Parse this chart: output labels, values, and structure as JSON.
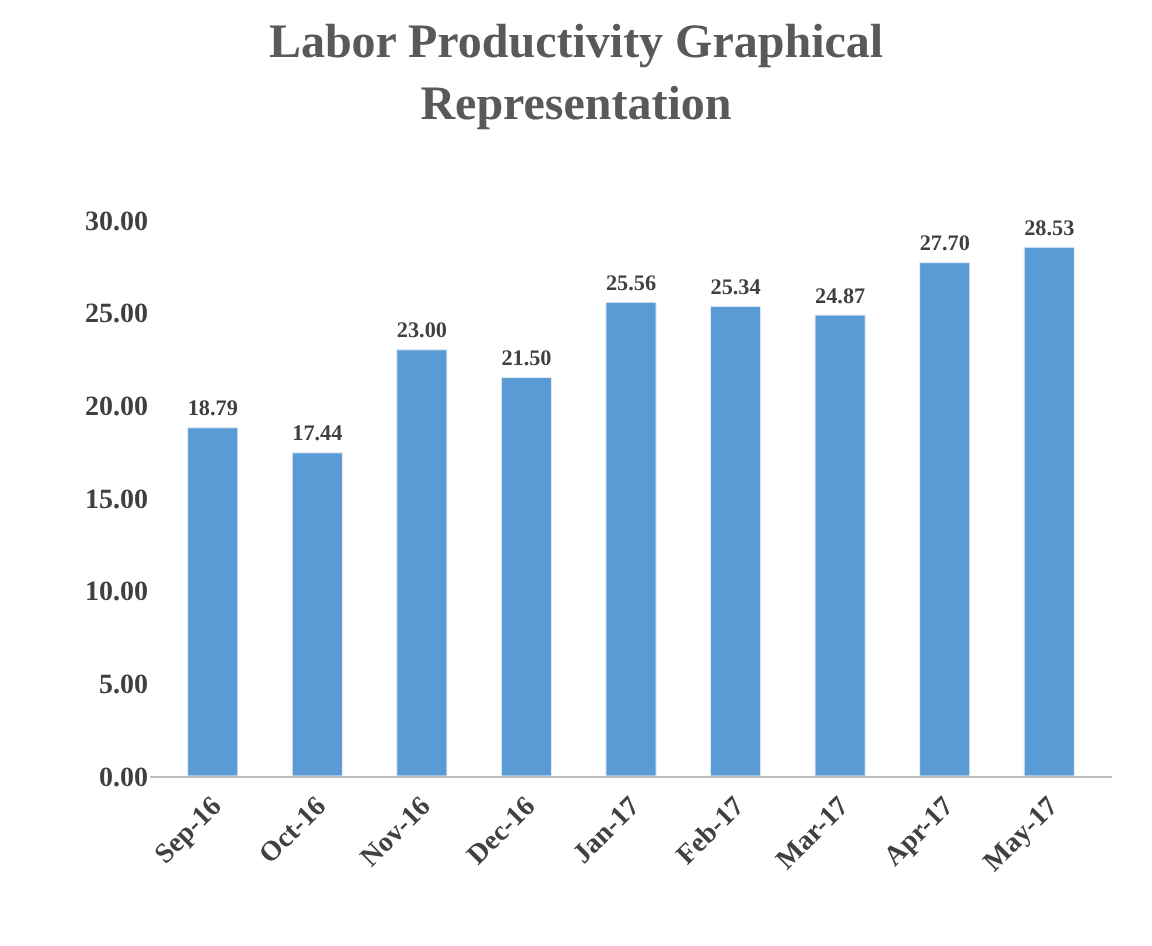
{
  "chart_data": {
    "type": "bar",
    "title": "Labor Productivity Graphical Representation",
    "categories": [
      "Sep-16",
      "Oct-16",
      "Nov-16",
      "Dec-16",
      "Jan-17",
      "Feb-17",
      "Mar-17",
      "Apr-17",
      "May-17"
    ],
    "values": [
      18.79,
      17.44,
      23.0,
      21.5,
      25.56,
      25.34,
      24.87,
      27.7,
      28.53
    ],
    "value_labels": [
      "18.79",
      "17.44",
      "23.00",
      "21.50",
      "25.56",
      "25.34",
      "24.87",
      "27.70",
      "28.53"
    ],
    "color": "#5b9bd5",
    "ylim": [
      0,
      30
    ],
    "yticks": [
      {
        "value": 0,
        "label": "0.00"
      },
      {
        "value": 5,
        "label": "5.00"
      },
      {
        "value": 10,
        "label": "10.00"
      },
      {
        "value": 15,
        "label": "15.00"
      },
      {
        "value": 20,
        "label": "20.00"
      },
      {
        "value": 25,
        "label": "25.00"
      },
      {
        "value": 30,
        "label": "30.00"
      }
    ]
  }
}
